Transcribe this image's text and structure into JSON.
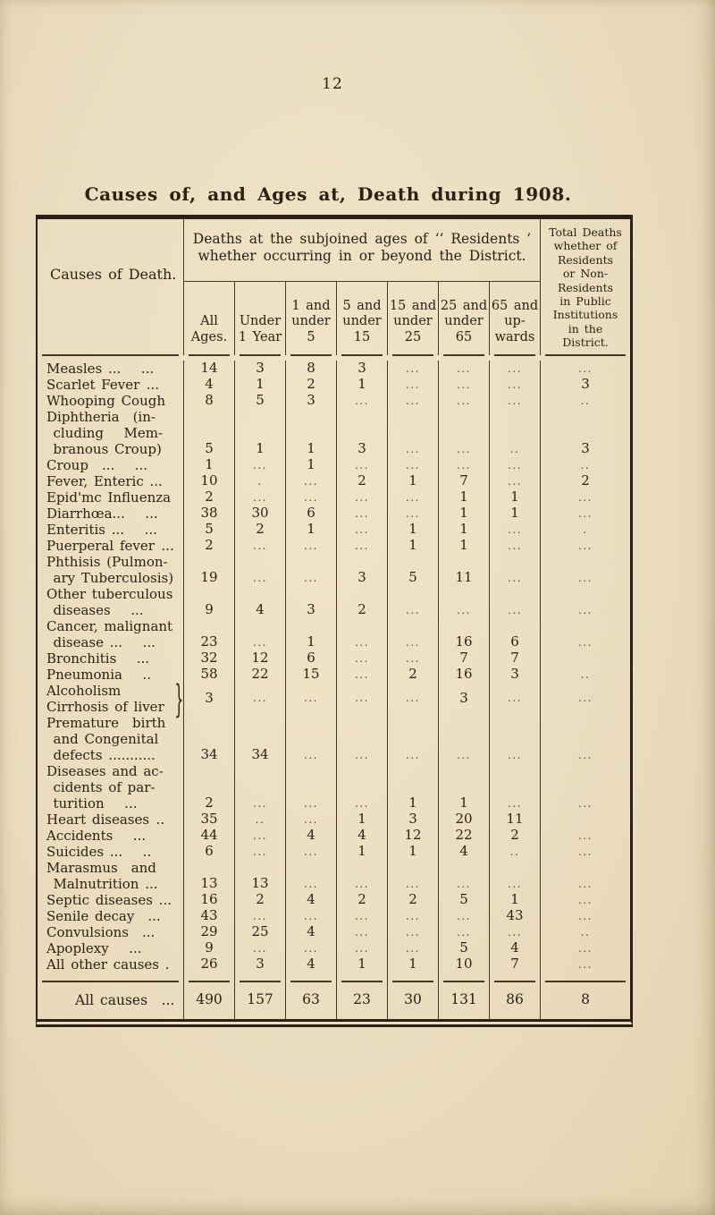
{
  "page": {
    "number": "12",
    "title": "Causes of, and Ages at, Death during 1908."
  },
  "colors": {
    "paper": "#ebdfc2",
    "ink": "#2b2115",
    "rule": "#453723"
  },
  "table": {
    "causes_header": "Causes of Death.",
    "ages_header": "Deaths at the subjoined ages of ‘‘ Residents ’\nwhether occurring in or beyond the  District.",
    "age_columns": [
      "All\nAges.",
      "Under\n1 Year",
      "1 and\nunder\n5",
      "5 and\nunder\n15",
      "15 and\nunder\n25",
      "25 and\nunder\n65",
      "65 and\nup-\nwards"
    ],
    "total_header": "Total Deaths\nwhether of\nResidents\nor Non-\nResidents\nin Public\nInstitutions\nin the\nDistrict.",
    "rows": [
      {
        "label_lines": [
          "Measles ...  ..."
        ],
        "values": [
          "14",
          "3",
          "8",
          "3",
          "...",
          "...",
          "...",
          "..."
        ]
      },
      {
        "label_lines": [
          "Scarlet Fever ..."
        ],
        "values": [
          "4",
          "1",
          "2",
          "1",
          "...",
          "...",
          "...",
          "3"
        ]
      },
      {
        "label_lines": [
          "Whooping Cough"
        ],
        "values": [
          "8",
          "5",
          "3",
          "...",
          "...",
          "...",
          "...",
          ".."
        ]
      },
      {
        "label_lines": [
          "Diphtheria (in-",
          " cluding  Mem-",
          " branous Croup)"
        ],
        "values": [
          "5",
          "1",
          "1",
          "3",
          "...",
          "...",
          "..",
          "3"
        ]
      },
      {
        "label_lines": [
          "Croup ...  ..."
        ],
        "values": [
          "1",
          "...",
          "1",
          "...",
          "...",
          "...",
          "...",
          ".."
        ]
      },
      {
        "label_lines": [
          "Fever, Enteric ..."
        ],
        "values": [
          "10",
          ".",
          "...",
          "2",
          "1",
          "7",
          "...",
          "2"
        ]
      },
      {
        "label_lines": [
          "Epid'mc Influenza"
        ],
        "values": [
          "2",
          "...",
          "...",
          "...",
          "...",
          "1",
          "1",
          "..."
        ]
      },
      {
        "label_lines": [
          "Diarrhœa...  ..."
        ],
        "values": [
          "38",
          "30",
          "6",
          "...",
          "...",
          "1",
          "1",
          "..."
        ]
      },
      {
        "label_lines": [
          "Enteritis ...  ..."
        ],
        "values": [
          "5",
          "2",
          "1",
          "...",
          "1",
          "1",
          "...",
          "."
        ]
      },
      {
        "label_lines": [
          "Puerperal fever ..."
        ],
        "values": [
          "2",
          "...",
          "...",
          "...",
          "1",
          "1",
          "...",
          "..."
        ]
      },
      {
        "label_lines": [
          "Phthisis (Pulmon-",
          " ary Tuberculosis)"
        ],
        "values": [
          "19",
          "...",
          "...",
          "3",
          "5",
          "11",
          "...",
          "..."
        ]
      },
      {
        "label_lines": [
          "Other tuberculous",
          " diseases  ..."
        ],
        "values": [
          "9",
          "4",
          "3",
          "2",
          "...",
          "...",
          "...",
          "..."
        ]
      },
      {
        "label_lines": [
          "Cancer, malignant",
          " disease ...  ..."
        ],
        "values": [
          "23",
          "...",
          "1",
          "...",
          "...",
          "16",
          "6",
          "..."
        ]
      },
      {
        "label_lines": [
          "Bronchitis  ..."
        ],
        "values": [
          "32",
          "12",
          "6",
          "...",
          "...",
          "7",
          "7",
          ""
        ]
      },
      {
        "label_lines": [
          "Pneumonia  .."
        ],
        "values": [
          "58",
          "22",
          "15",
          "...",
          "2",
          "16",
          "3",
          ".."
        ]
      },
      {
        "label_lines": [
          "Alcoholism",
          "Cirrhosis of liver"
        ],
        "values": [
          "3",
          "...",
          "...",
          "...",
          "...",
          "3",
          "...",
          "..."
        ],
        "brace": true,
        "center": true
      },
      {
        "label_lines": [
          "Premature  birth",
          " and Congenital",
          " defects ..........."
        ],
        "values": [
          "34",
          "34",
          "...",
          "...",
          "...",
          "...",
          "...",
          "..."
        ]
      },
      {
        "label_lines": [
          "Diseases and ac-",
          " cidents of par-",
          " turition  ..."
        ],
        "values": [
          "2",
          "...",
          "...",
          "...",
          "1",
          "1",
          "...",
          "..."
        ]
      },
      {
        "label_lines": [
          "Heart diseases .."
        ],
        "values": [
          "35",
          "..",
          "...",
          "1",
          "3",
          "20",
          "11",
          ""
        ]
      },
      {
        "label_lines": [
          "Accidents  ..."
        ],
        "values": [
          "44",
          "...",
          "4",
          "4",
          "12",
          "22",
          "2",
          "..."
        ]
      },
      {
        "label_lines": [
          "Suicides ...  .."
        ],
        "values": [
          "6",
          "...",
          "...",
          "1",
          "1",
          "4",
          "..",
          "..."
        ]
      },
      {
        "label_lines": [
          "Marasmus  and",
          " Malnutrition ..."
        ],
        "values": [
          "13",
          "13",
          "...",
          "...",
          "...",
          "...",
          "...",
          "..."
        ]
      },
      {
        "label_lines": [
          "Septic diseases ..."
        ],
        "values": [
          "16",
          "2",
          "4",
          "2",
          "2",
          "5",
          "1",
          "..."
        ]
      },
      {
        "label_lines": [
          "Senile decay ..."
        ],
        "values": [
          "43",
          "...",
          "...",
          "...",
          "...",
          "...",
          "43",
          "..."
        ]
      },
      {
        "label_lines": [
          "Convulsions ..."
        ],
        "values": [
          "29",
          "25",
          "4",
          "...",
          "...",
          "...",
          "...",
          ".."
        ]
      },
      {
        "label_lines": [
          "Apoplexy  ..."
        ],
        "values": [
          "9",
          "...",
          "...",
          "...",
          "...",
          "5",
          "4",
          "..."
        ]
      },
      {
        "label_lines": [
          "All other causes ."
        ],
        "values": [
          "26",
          "3",
          "4",
          "1",
          "1",
          "10",
          "7",
          "..."
        ]
      }
    ],
    "total_row": {
      "label": "All causes ...",
      "values": [
        "490",
        "157",
        "63",
        "23",
        "30",
        "131",
        "86",
        "8"
      ]
    }
  }
}
